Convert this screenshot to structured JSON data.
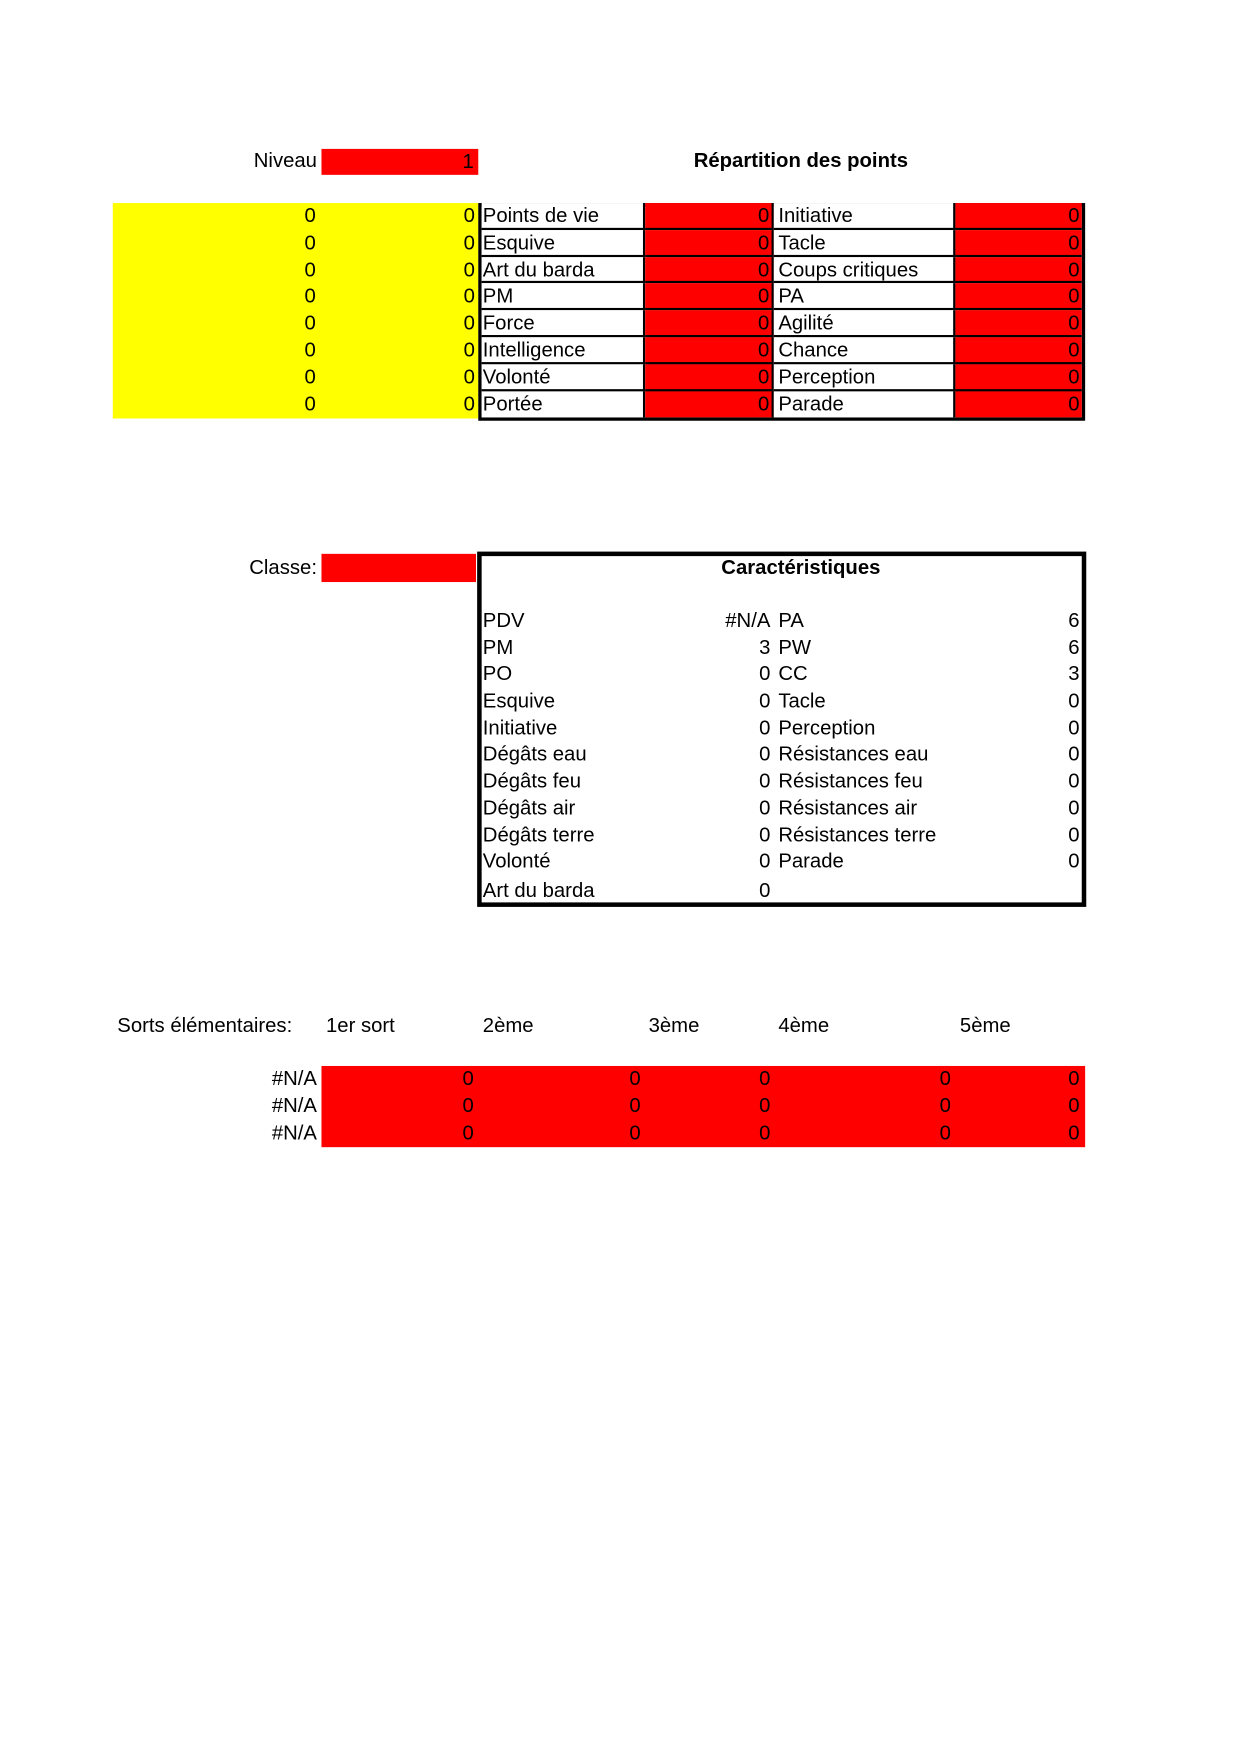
{
  "niveau": {
    "label": "Niveau",
    "value": "1"
  },
  "repartition": {
    "title": "Répartition des points",
    "rows": [
      {
        "y1": "0",
        "y2": "0",
        "left_label": "Points de vie",
        "left_value": "0",
        "right_label": "Initiative",
        "right_value": "0"
      },
      {
        "y1": "0",
        "y2": "0",
        "left_label": "Esquive",
        "left_value": "0",
        "right_label": "Tacle",
        "right_value": "0"
      },
      {
        "y1": "0",
        "y2": "0",
        "left_label": "Art du barda",
        "left_value": "0",
        "right_label": "Coups critiques",
        "right_value": "0"
      },
      {
        "y1": "0",
        "y2": "0",
        "left_label": "PM",
        "left_value": "0",
        "right_label": "PA",
        "right_value": "0"
      },
      {
        "y1": "0",
        "y2": "0",
        "left_label": "Force",
        "left_value": "0",
        "right_label": "Agilité",
        "right_value": "0"
      },
      {
        "y1": "0",
        "y2": "0",
        "left_label": "Intelligence",
        "left_value": "0",
        "right_label": "Chance",
        "right_value": "0"
      },
      {
        "y1": "0",
        "y2": "0",
        "left_label": "Volonté",
        "left_value": "0",
        "right_label": "Perception",
        "right_value": "0"
      },
      {
        "y1": "0",
        "y2": "0",
        "left_label": "Portée",
        "left_value": "0",
        "right_label": "Parade",
        "right_value": "0"
      }
    ]
  },
  "classe": {
    "label": "Classe:",
    "value": ""
  },
  "caracteristiques": {
    "title": "Caractéristiques",
    "rows": [
      {
        "l": "PDV",
        "lv": "#N/A",
        "r": "PA",
        "rv": "6"
      },
      {
        "l": "PM",
        "lv": "3",
        "r": "PW",
        "rv": "6"
      },
      {
        "l": "PO",
        "lv": "0",
        "r": "CC",
        "rv": "3"
      },
      {
        "l": "Esquive",
        "lv": "0",
        "r": "Tacle",
        "rv": "0"
      },
      {
        "l": "Initiative",
        "lv": "0",
        "r": "Perception",
        "rv": "0"
      },
      {
        "l": "Dégâts eau",
        "lv": "0",
        "r": "Résistances eau",
        "rv": "0"
      },
      {
        "l": "Dégâts feu",
        "lv": "0",
        "r": "Résistances feu",
        "rv": "0"
      },
      {
        "l": "Dégâts air",
        "lv": "0",
        "r": "Résistances air",
        "rv": "0"
      },
      {
        "l": "Dégâts terre",
        "lv": "0",
        "r": "Résistances terre",
        "rv": "0"
      },
      {
        "l": "Volonté",
        "lv": "0",
        "r": "Parade",
        "rv": "0"
      },
      {
        "l": "Art du barda",
        "lv": "0",
        "r": "",
        "rv": ""
      }
    ]
  },
  "sorts": {
    "label": "Sorts élémentaires:",
    "headers": [
      "1er sort",
      "2ème",
      "3ème",
      "4ème",
      "5ème"
    ],
    "rows": [
      {
        "name": "#N/A",
        "values": [
          "0",
          "0",
          "0",
          "0",
          "0"
        ]
      },
      {
        "name": "#N/A",
        "values": [
          "0",
          "0",
          "0",
          "0",
          "0"
        ]
      },
      {
        "name": "#N/A",
        "values": [
          "0",
          "0",
          "0",
          "0",
          "0"
        ]
      }
    ]
  },
  "colors": {
    "input_red": "#ff0000",
    "highlight_yellow": "#ffff00"
  }
}
